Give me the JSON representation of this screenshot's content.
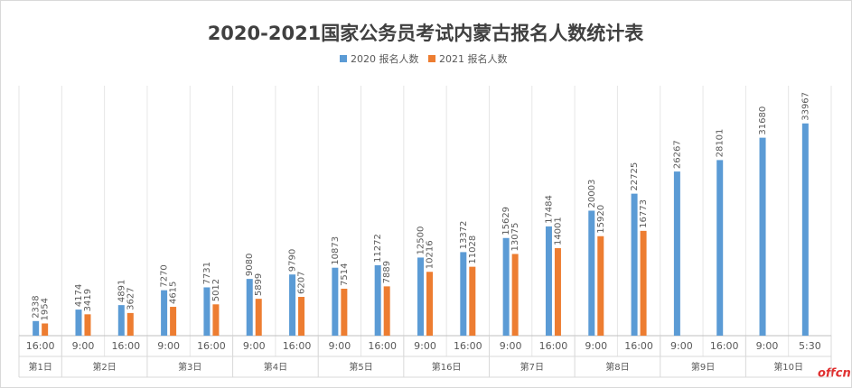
{
  "chart_data": {
    "type": "bar",
    "title": "2020-2021国家公务员考试内蒙古报名人数统计表",
    "categories": [
      "16:00",
      "9:00",
      "16:00",
      "9:00",
      "16:00",
      "9:00",
      "16:00",
      "9:00",
      "16:00",
      "9:00",
      "16:00",
      "9:00",
      "16:00",
      "9:00",
      "16:00",
      "9:00",
      "16:00",
      "9:00",
      "5:30"
    ],
    "groups": [
      {
        "name": "第1日",
        "count": 1
      },
      {
        "name": "第2日",
        "count": 2
      },
      {
        "name": "第3日",
        "count": 2
      },
      {
        "name": "第4日",
        "count": 2
      },
      {
        "name": "第5日",
        "count": 2
      },
      {
        "name": "第16日",
        "count": 2
      },
      {
        "name": "第7日",
        "count": 2
      },
      {
        "name": "第8日",
        "count": 2
      },
      {
        "name": "第9日",
        "count": 2
      },
      {
        "name": "第10日",
        "count": 2
      }
    ],
    "series": [
      {
        "name": "2020 报名人数",
        "color": "#5b9bd5",
        "values": [
          2338,
          4174,
          4891,
          7270,
          7731,
          9080,
          9790,
          10873,
          11272,
          12500,
          13372,
          15629,
          17484,
          20003,
          22725,
          26267,
          28101,
          31680,
          33967
        ]
      },
      {
        "name": "2021 报名人数",
        "color": "#ed7d31",
        "values": [
          1954,
          3419,
          3627,
          4615,
          5012,
          5899,
          6207,
          7514,
          7889,
          10216,
          11028,
          13075,
          14001,
          15920,
          16773,
          null,
          null,
          null,
          null
        ]
      }
    ],
    "ylim": [
      0,
      40000
    ],
    "legend": "top",
    "watermark": "offcn"
  }
}
